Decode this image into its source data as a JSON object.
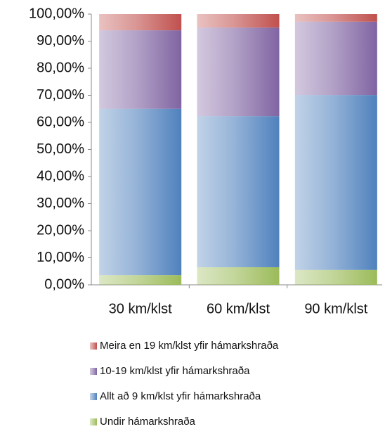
{
  "chart_data": {
    "type": "stacked_bar",
    "categories": [
      "30 km/klst",
      "60 km/klst",
      "90 km/klst"
    ],
    "series": [
      {
        "name": "Undir hámarkshraða",
        "color": "#9bbb59",
        "values": [
          3.6,
          6.5,
          5.5
        ]
      },
      {
        "name": "Allt að 9 km/klst yfir hámarkshraða",
        "color": "#4f81bd",
        "values": [
          61.4,
          55.8,
          64.6
        ]
      },
      {
        "name": "10-19 km/klst yfir hámarkshraða",
        "color": "#8064a2",
        "values": [
          29,
          32.7,
          27.1
        ]
      },
      {
        "name": "Meira en 19 km/klst yfir hámarkshraða",
        "color": "#c0504d",
        "values": [
          6,
          5,
          2.8
        ]
      }
    ],
    "ylim": [
      0,
      100
    ],
    "yticks": [
      {
        "value": 0,
        "label": "0,00%"
      },
      {
        "value": 10,
        "label": "10,00%"
      },
      {
        "value": 20,
        "label": "20,00%"
      },
      {
        "value": 30,
        "label": "30,00%"
      },
      {
        "value": 40,
        "label": "40,00%"
      },
      {
        "value": 50,
        "label": "50,00%"
      },
      {
        "value": 60,
        "label": "60,00%"
      },
      {
        "value": 70,
        "label": "70,00%"
      },
      {
        "value": 80,
        "label": "80,00%"
      },
      {
        "value": 90,
        "label": "90,00%"
      },
      {
        "value": 100,
        "label": "100,00%"
      }
    ],
    "grid": false,
    "legend": "bottom"
  }
}
